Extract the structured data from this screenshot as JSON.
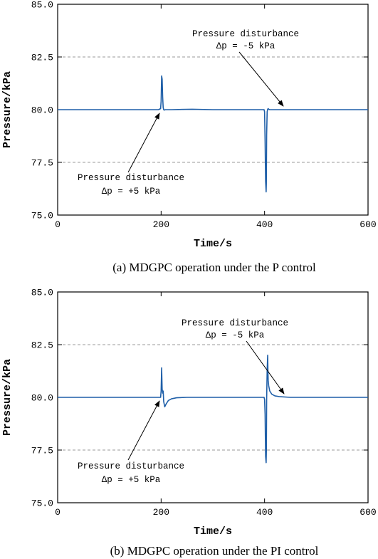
{
  "chart_data": [
    {
      "type": "line",
      "caption": "(a) MDGPC operation under the P control",
      "xlabel": "Time/s",
      "ylabel": "Pressure/kPa",
      "xlim": [
        0,
        600
      ],
      "ylim": [
        75,
        85
      ],
      "xticks": [
        "0",
        "200",
        "400",
        "600"
      ],
      "yticks": [
        "75.0",
        "77.5",
        "80.0",
        "82.5",
        "85.0"
      ],
      "grid_y": [
        77.5,
        82.5
      ],
      "series": [
        {
          "x": [
            0,
            100,
            150,
            195,
            199,
            200,
            201,
            202,
            203,
            204,
            205,
            206,
            208,
            210,
            220,
            260,
            300,
            350,
            395,
            399,
            400,
            401,
            402,
            402.6,
            403,
            403.4,
            404,
            405,
            406,
            407,
            408,
            410,
            420,
            450,
            500,
            550,
            600
          ],
          "y": [
            80.0,
            80.0,
            80.0,
            80.0,
            80.05,
            80.4,
            81.6,
            81.45,
            80.6,
            80.1,
            80.0,
            79.98,
            80.0,
            80.0,
            80.0,
            80.02,
            80.0,
            80.0,
            80.0,
            80.0,
            79.9,
            78.5,
            76.6,
            76.3,
            76.1,
            76.5,
            78.8,
            79.9,
            80.02,
            80.05,
            80.02,
            80.0,
            80.0,
            80.0,
            80.0,
            80.0,
            80.0
          ]
        }
      ],
      "annotations": [
        {
          "line1": "Pressure disturbance",
          "line2": "Δp = -5 kPa",
          "target": [
            400,
            80.0
          ]
        },
        {
          "line1": "Pressure disturbance",
          "line2": "Δp = +5 kPa",
          "target": [
            200,
            80.0
          ]
        }
      ]
    },
    {
      "type": "line",
      "caption": "(b) MDGPC operation under the PI control",
      "xlabel": "Time/s",
      "ylabel": "Pressure/kPa",
      "xlim": [
        0,
        600
      ],
      "ylim": [
        75,
        85
      ],
      "xticks": [
        "0",
        "200",
        "400",
        "600"
      ],
      "yticks": [
        "75.0",
        "77.5",
        "80.0",
        "82.5",
        "85.0"
      ],
      "grid_y": [
        77.5,
        82.5
      ],
      "series": [
        {
          "x": [
            0,
            100,
            195,
            199,
            200,
            201,
            202,
            203,
            204,
            205,
            207,
            210,
            214,
            220,
            230,
            250,
            300,
            390,
            399,
            400,
            401,
            402,
            403,
            403.5,
            404,
            405,
            406,
            406.5,
            407,
            408,
            410,
            414,
            420,
            430,
            450,
            500,
            600
          ],
          "y": [
            80.0,
            80.0,
            80.0,
            80.0,
            80.3,
            81.4,
            80.4,
            80.2,
            80.3,
            79.8,
            79.55,
            79.7,
            79.85,
            79.93,
            79.98,
            80.0,
            80.0,
            80.0,
            80.0,
            79.9,
            79.2,
            77.2,
            76.9,
            77.5,
            79.9,
            81.3,
            82.0,
            81.3,
            80.8,
            80.55,
            80.3,
            80.15,
            80.07,
            80.03,
            80.0,
            80.0,
            80.0
          ]
        }
      ],
      "annotations": [
        {
          "line1": "Pressure disturbance",
          "line2": "Δp = -5 kPa",
          "target": [
            400,
            80.0
          ]
        },
        {
          "line1": "Pressure disturbance",
          "line2": "Δp = +5 kPa",
          "target": [
            200,
            80.0
          ]
        }
      ]
    }
  ],
  "colors": {
    "series": "#1f5fa8",
    "grid": "#9a9a9a"
  }
}
